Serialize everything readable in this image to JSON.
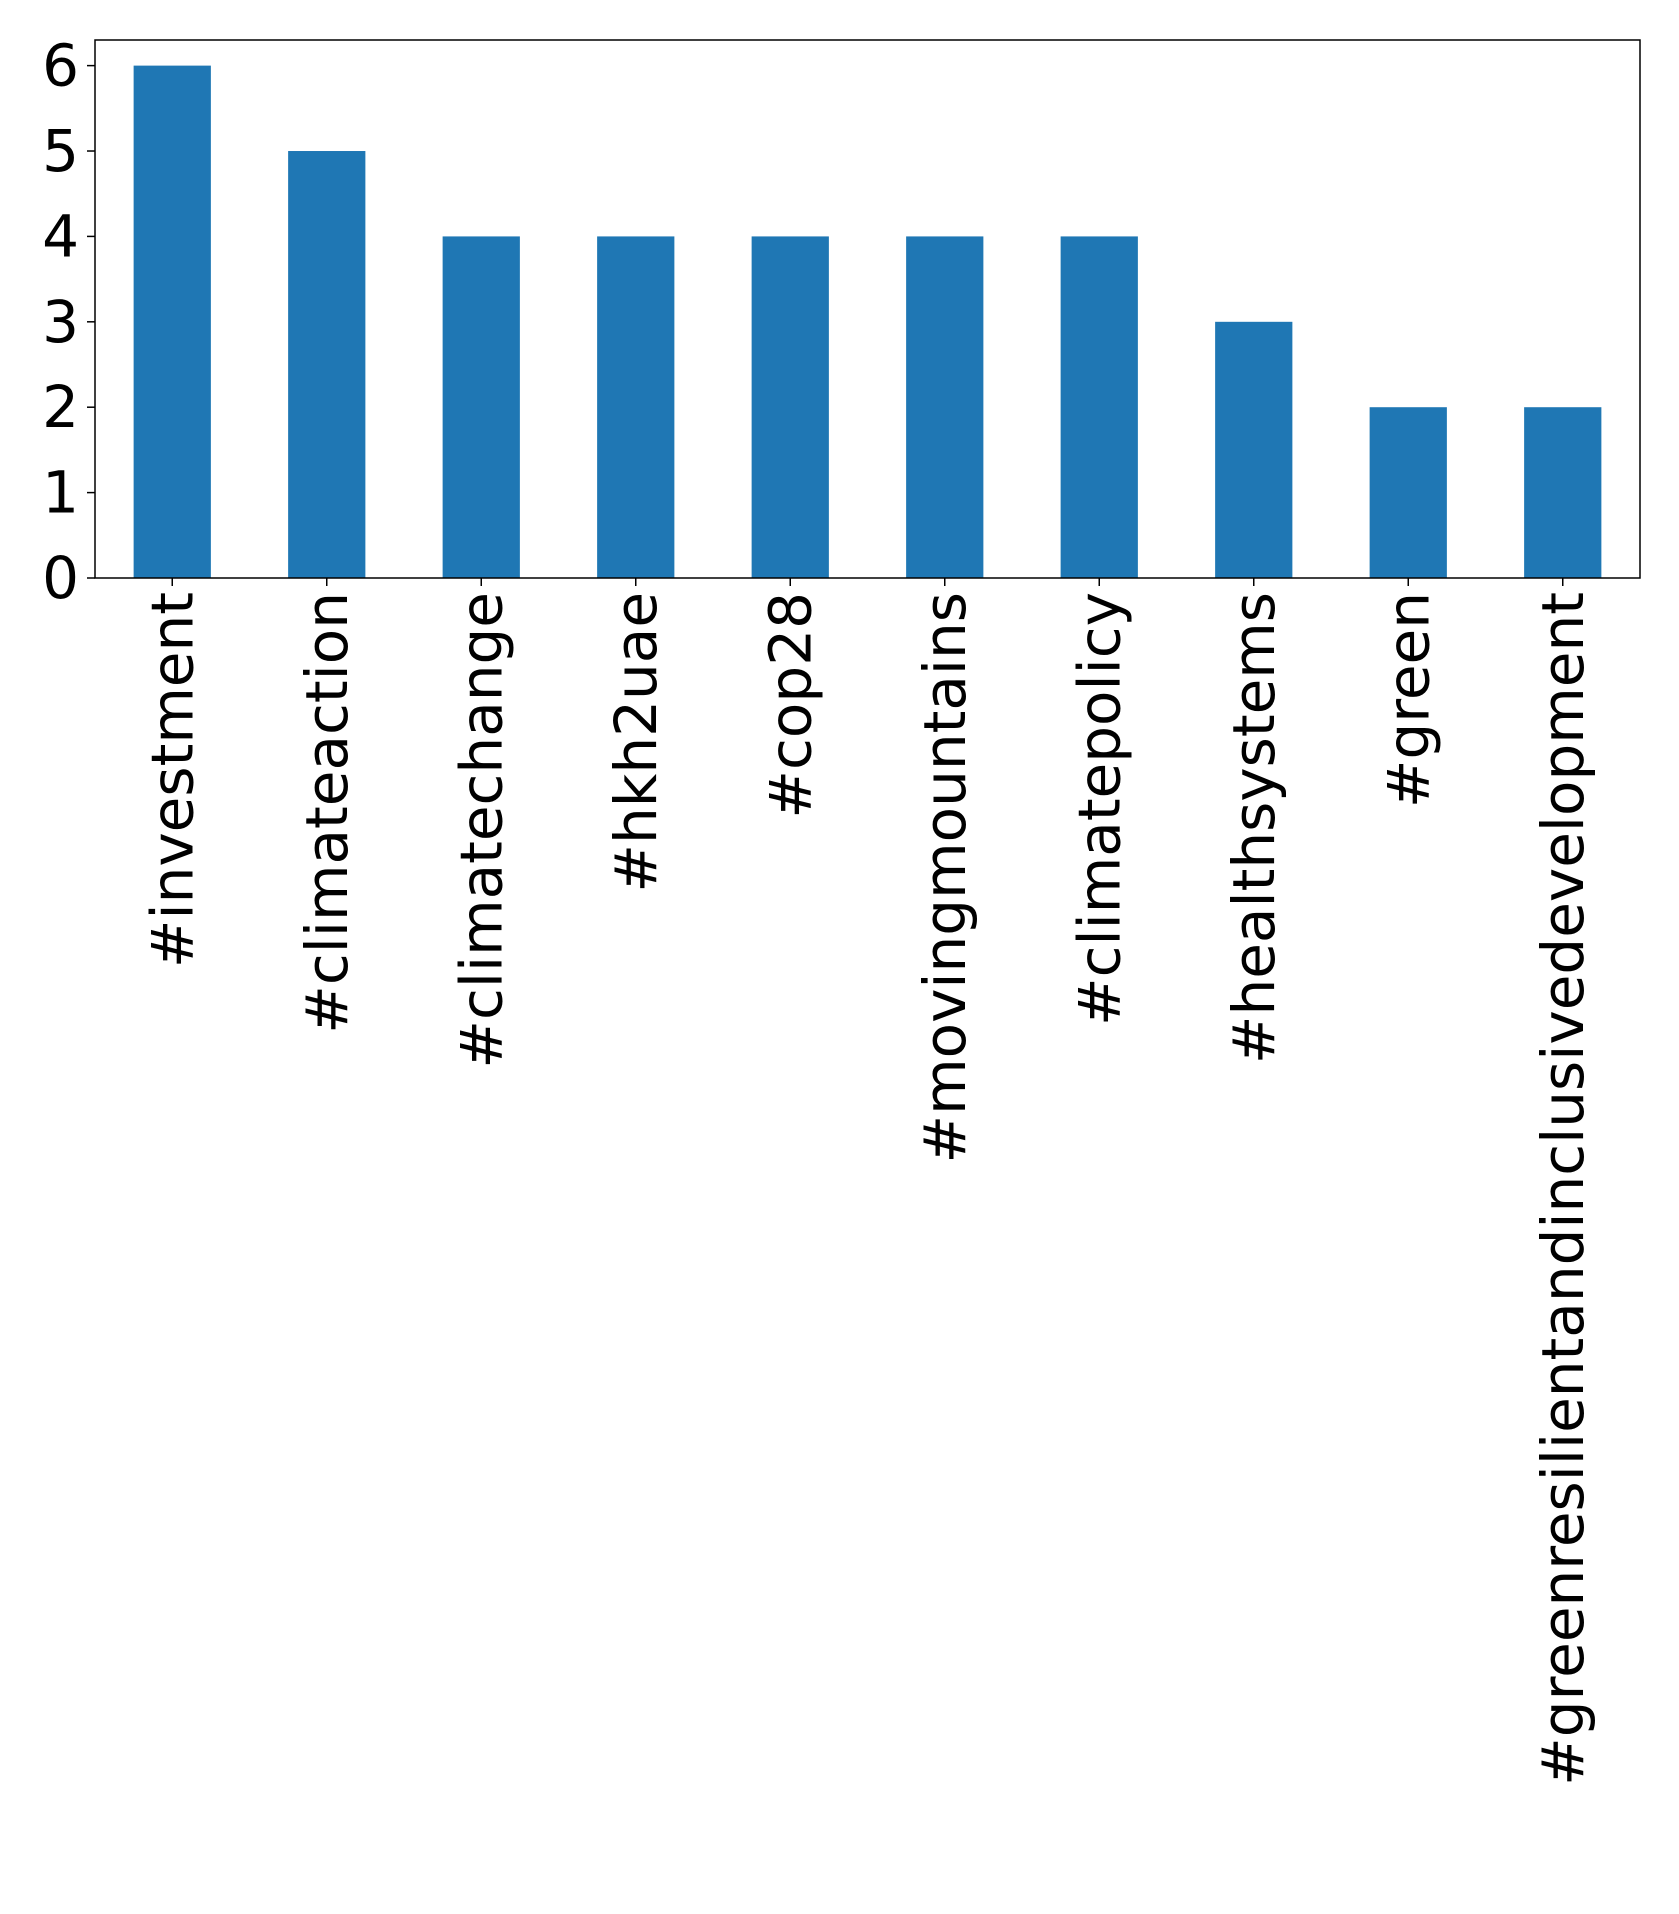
{
  "chart_data": {
    "type": "bar",
    "title": "",
    "xlabel": "",
    "ylabel": "",
    "categories": [
      "#investment",
      "#climateaction",
      "#climatechange",
      "#hkh2uae",
      "#cop28",
      "#movingmountains",
      "#climatepolicy",
      "#healthsystems",
      "#green",
      "#greenresilientandinclusivedevelopment"
    ],
    "values": [
      6,
      5,
      4,
      4,
      4,
      4,
      4,
      3,
      2,
      2
    ],
    "ylim": [
      0,
      6.3
    ],
    "yticks": [
      0,
      1,
      2,
      3,
      4,
      5,
      6
    ],
    "bar_color": "#1f77b4",
    "grid": false,
    "legend": "none"
  }
}
